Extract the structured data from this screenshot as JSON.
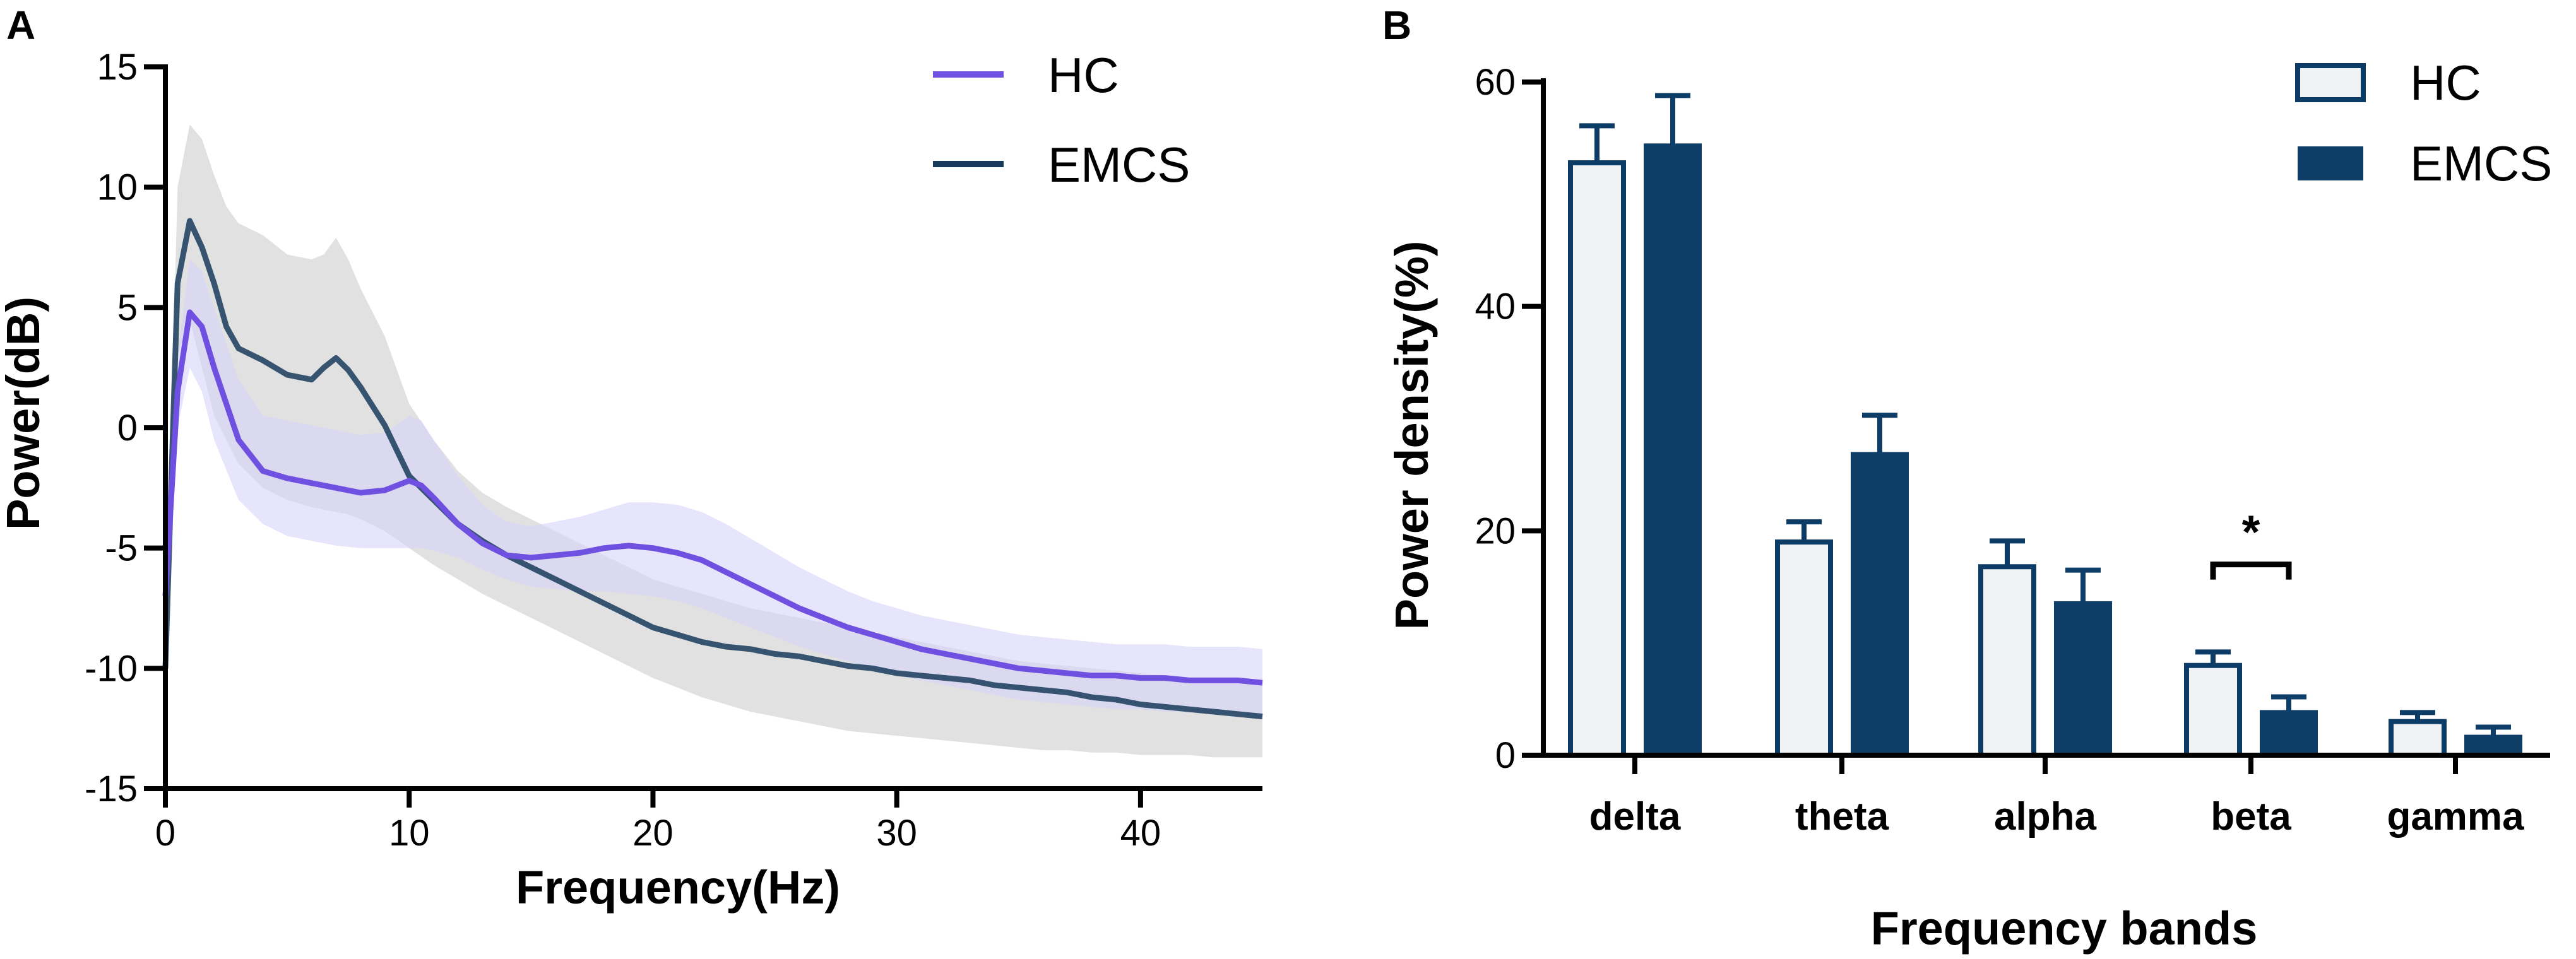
{
  "chart_data": [
    {
      "panel": "A",
      "type": "line",
      "xlabel": "Frequency(Hz)",
      "ylabel": "Power(dB)",
      "xlim": [
        0,
        45
      ],
      "ylim": [
        -15,
        15
      ],
      "xticks": [
        0,
        10,
        20,
        30,
        40
      ],
      "yticks": [
        -15,
        -10,
        -5,
        0,
        5,
        10,
        15
      ],
      "legend": {
        "position": "top-right",
        "entries": [
          "HC",
          "EMCS"
        ]
      },
      "colors": {
        "HC": "#7050e0",
        "HC_band": "#d6d4fa",
        "EMCS": "#17395a",
        "EMCS_band": "#dcdcdc"
      },
      "series": [
        {
          "name": "HC",
          "x": [
            0,
            0.5,
            1,
            1.5,
            2,
            3,
            4,
            5,
            6,
            7,
            8,
            9,
            10,
            10.5,
            11,
            12,
            13,
            14,
            15,
            16,
            17,
            18,
            19,
            20,
            21,
            22,
            23,
            24,
            25,
            26,
            27,
            28,
            29,
            30,
            31,
            32,
            33,
            34,
            35,
            36,
            37,
            38,
            39,
            40,
            41,
            42,
            43,
            44,
            45
          ],
          "y": [
            -7,
            1.5,
            4.8,
            4.2,
            2.5,
            -0.5,
            -1.8,
            -2.1,
            -2.3,
            -2.5,
            -2.7,
            -2.6,
            -2.2,
            -2.4,
            -2.9,
            -4.0,
            -4.8,
            -5.3,
            -5.4,
            -5.3,
            -5.2,
            -5.0,
            -4.9,
            -5.0,
            -5.2,
            -5.5,
            -6.0,
            -6.5,
            -7.0,
            -7.5,
            -7.9,
            -8.3,
            -8.6,
            -8.9,
            -9.2,
            -9.4,
            -9.6,
            -9.8,
            -10.0,
            -10.1,
            -10.2,
            -10.3,
            -10.3,
            -10.4,
            -10.4,
            -10.5,
            -10.5,
            -10.5,
            -10.6
          ],
          "lower": [
            -8,
            0,
            2.5,
            1.5,
            -0.5,
            -3.0,
            -4.0,
            -4.5,
            -4.7,
            -4.9,
            -5.0,
            -5.0,
            -5.0,
            -5.0,
            -5.1,
            -5.4,
            -5.9,
            -6.3,
            -6.6,
            -6.7,
            -6.8,
            -6.8,
            -6.9,
            -7.0,
            -7.2,
            -7.5,
            -7.9,
            -8.3,
            -8.7,
            -9.1,
            -9.4,
            -9.7,
            -10.0,
            -10.3,
            -10.5,
            -10.7,
            -10.9,
            -11.1,
            -11.3,
            -11.4,
            -11.5,
            -11.6,
            -11.7,
            -11.7,
            -11.8,
            -11.8,
            -11.9,
            -11.9,
            -12.0
          ],
          "upper": [
            -6,
            3.0,
            7.0,
            6.5,
            5.0,
            2.0,
            0.5,
            0.3,
            0.1,
            -0.1,
            -0.3,
            -0.2,
            0.5,
            0.3,
            -0.5,
            -2.0,
            -3.2,
            -3.9,
            -4.1,
            -3.9,
            -3.7,
            -3.4,
            -3.1,
            -3.1,
            -3.2,
            -3.5,
            -4.0,
            -4.6,
            -5.2,
            -5.8,
            -6.3,
            -6.8,
            -7.2,
            -7.5,
            -7.8,
            -8.0,
            -8.2,
            -8.4,
            -8.6,
            -8.7,
            -8.8,
            -8.9,
            -9.0,
            -9.0,
            -9.0,
            -9.1,
            -9.1,
            -9.1,
            -9.2
          ]
        },
        {
          "name": "EMCS",
          "x": [
            0,
            0.5,
            1,
            1.5,
            2,
            2.5,
            3,
            4,
            5,
            6,
            6.5,
            7,
            7.5,
            8,
            9,
            10,
            11,
            12,
            13,
            14,
            15,
            16,
            17,
            18,
            19,
            20,
            21,
            22,
            23,
            24,
            25,
            26,
            27,
            28,
            29,
            30,
            31,
            32,
            33,
            34,
            35,
            36,
            37,
            38,
            39,
            40,
            41,
            42,
            43,
            44,
            45
          ],
          "y": [
            -10,
            6.0,
            8.6,
            7.5,
            6.0,
            4.2,
            3.3,
            2.8,
            2.2,
            2.0,
            2.5,
            2.9,
            2.4,
            1.7,
            0.1,
            -2.0,
            -3.0,
            -4.0,
            -4.7,
            -5.3,
            -5.8,
            -6.3,
            -6.8,
            -7.3,
            -7.8,
            -8.3,
            -8.6,
            -8.9,
            -9.1,
            -9.2,
            -9.4,
            -9.5,
            -9.7,
            -9.9,
            -10.0,
            -10.2,
            -10.3,
            -10.4,
            -10.5,
            -10.7,
            -10.8,
            -10.9,
            -11.0,
            -11.2,
            -11.3,
            -11.5,
            -11.6,
            -11.7,
            -11.8,
            -11.9,
            -12.0
          ],
          "lower": [
            -11,
            3.0,
            4.5,
            2.5,
            0.5,
            -0.5,
            -1.5,
            -2.5,
            -3.0,
            -3.3,
            -3.4,
            -3.5,
            -3.6,
            -3.8,
            -4.3,
            -5.0,
            -5.7,
            -6.3,
            -6.9,
            -7.4,
            -7.9,
            -8.4,
            -8.9,
            -9.4,
            -9.9,
            -10.4,
            -10.8,
            -11.2,
            -11.5,
            -11.8,
            -12.0,
            -12.2,
            -12.4,
            -12.6,
            -12.7,
            -12.8,
            -12.9,
            -13.0,
            -13.1,
            -13.2,
            -13.3,
            -13.4,
            -13.4,
            -13.5,
            -13.5,
            -13.6,
            -13.6,
            -13.6,
            -13.7,
            -13.7,
            -13.7
          ],
          "upper": [
            -9,
            10.0,
            12.6,
            12.0,
            10.5,
            9.2,
            8.5,
            8.0,
            7.2,
            7.0,
            7.2,
            7.9,
            7.0,
            5.8,
            3.8,
            1.0,
            -0.5,
            -1.8,
            -2.7,
            -3.3,
            -3.8,
            -4.3,
            -4.8,
            -5.3,
            -5.8,
            -6.3,
            -6.6,
            -6.9,
            -7.2,
            -7.5,
            -7.7,
            -7.9,
            -8.1,
            -8.3,
            -8.5,
            -8.7,
            -8.9,
            -9.1,
            -9.3,
            -9.5,
            -9.7,
            -9.8,
            -9.9,
            -10.0,
            -10.1,
            -10.2,
            -10.3,
            -10.4,
            -10.5,
            -10.6,
            -10.6
          ]
        }
      ]
    },
    {
      "panel": "B",
      "type": "bar",
      "xlabel": "Frequency bands",
      "ylabel": "Power density(%)",
      "ylim": [
        0,
        60
      ],
      "yticks": [
        0,
        20,
        40,
        60
      ],
      "categories": [
        "delta",
        "theta",
        "alpha",
        "beta",
        "gamma"
      ],
      "legend": {
        "position": "top-right",
        "entries": [
          "HC",
          "EMCS"
        ]
      },
      "colors": {
        "HC_fill": "#f0f2f4",
        "HC_edge": "#0c3b66",
        "EMCS_fill": "#0e3d68"
      },
      "series": [
        {
          "name": "HC",
          "values": [
            52.8,
            19.0,
            16.8,
            8.0,
            3.0
          ],
          "errors": [
            3.3,
            1.8,
            2.3,
            1.2,
            0.8
          ]
        },
        {
          "name": "EMCS",
          "values": [
            54.3,
            26.8,
            13.5,
            3.8,
            1.6
          ],
          "errors": [
            4.5,
            3.5,
            3.0,
            1.4,
            0.9
          ]
        }
      ],
      "significance": {
        "category": "beta",
        "label": "*",
        "y": 17
      }
    }
  ]
}
